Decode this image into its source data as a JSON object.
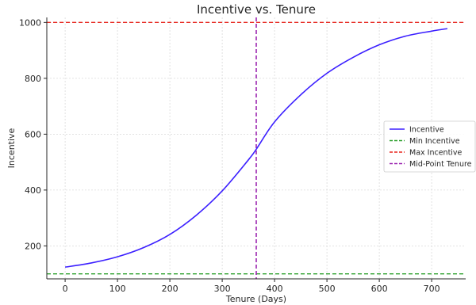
{
  "chart_data": {
    "type": "line",
    "title": "Incentive vs. Tenure",
    "xlabel": "Tenure (Days)",
    "ylabel": "Incentive",
    "xlim": [
      -35,
      765
    ],
    "ylim": [
      82,
      1018
    ],
    "xticks": [
      0,
      100,
      200,
      300,
      400,
      500,
      600,
      700
    ],
    "yticks": [
      200,
      400,
      600,
      800,
      1000
    ],
    "grid": true,
    "legend_position": "center-right",
    "series": [
      {
        "name": "Incentive",
        "style": "solid",
        "color": "#3b1fff",
        "x": [
          0,
          50,
          100,
          150,
          200,
          250,
          300,
          350,
          365,
          400,
          450,
          500,
          550,
          600,
          650,
          700,
          730
        ],
        "y": [
          124,
          139,
          161,
          194,
          241,
          309,
          397,
          508,
          546,
          644,
          741,
          818,
          875,
          920,
          951,
          969,
          978
        ]
      },
      {
        "name": "Min Incentive",
        "style": "dashed",
        "color": "#2ca02c",
        "orientation": "horizontal",
        "value": 100
      },
      {
        "name": "Max Incentive",
        "style": "dashed",
        "color": "#e8271f",
        "orientation": "horizontal",
        "value": 1000
      },
      {
        "name": "Mid-Point Tenure",
        "style": "dashed",
        "color": "#9c27b0",
        "orientation": "vertical",
        "value": 365
      }
    ]
  }
}
